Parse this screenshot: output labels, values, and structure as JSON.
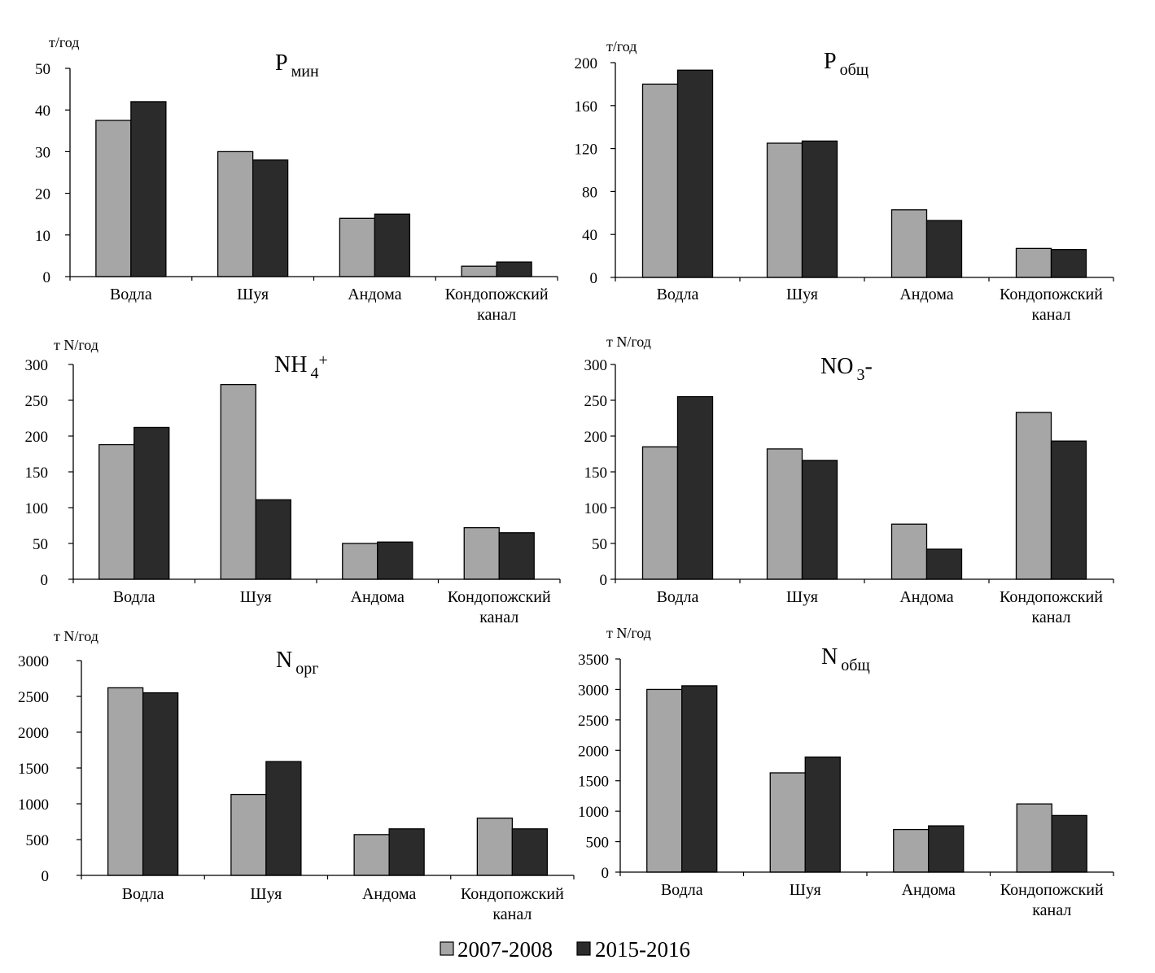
{
  "legend": [
    {
      "label": "2007-2008",
      "color": "#a6a6a6"
    },
    {
      "label": "2015-2016",
      "color": "#2b2b2b"
    }
  ],
  "chart_data": [
    {
      "type": "bar",
      "title_main": "P",
      "title_sub": "мин",
      "unit": "т/год",
      "categories": [
        [
          "Водла"
        ],
        [
          "Шуя"
        ],
        [
          "Андома"
        ],
        [
          "Кондопожский",
          "канал"
        ]
      ],
      "series": [
        {
          "name": "2007-2008",
          "values": [
            37.5,
            30,
            14,
            2.5
          ]
        },
        {
          "name": "2015-2016",
          "values": [
            42,
            28,
            15,
            3.5
          ]
        }
      ],
      "ylim": [
        0,
        50
      ],
      "yticks": [
        0,
        10,
        20,
        30,
        40,
        50
      ]
    },
    {
      "type": "bar",
      "title_main": "P",
      "title_sub": "общ",
      "unit": "т/год",
      "categories": [
        [
          "Водла"
        ],
        [
          "Шуя"
        ],
        [
          "Андома"
        ],
        [
          "Кондопожский",
          "канал"
        ]
      ],
      "series": [
        {
          "name": "2007-2008",
          "values": [
            180,
            125,
            63,
            27
          ]
        },
        {
          "name": "2015-2016",
          "values": [
            193,
            127,
            53,
            26
          ]
        }
      ],
      "ylim": [
        0,
        200
      ],
      "yticks": [
        0,
        40,
        80,
        120,
        160,
        200
      ]
    },
    {
      "type": "bar",
      "title_main": "NH",
      "title_sub": "4",
      "title_sup": "+",
      "unit": "т N/год",
      "categories": [
        [
          "Водла"
        ],
        [
          "Шуя"
        ],
        [
          "Андома"
        ],
        [
          "Кондопожский",
          "канал"
        ]
      ],
      "series": [
        {
          "name": "2007-2008",
          "values": [
            188,
            272,
            50,
            72
          ]
        },
        {
          "name": "2015-2016",
          "values": [
            212,
            111,
            52,
            65
          ]
        }
      ],
      "ylim": [
        0,
        300
      ],
      "yticks": [
        0,
        50,
        100,
        150,
        200,
        250,
        300
      ]
    },
    {
      "type": "bar",
      "title_main": "NO",
      "title_sub": "3",
      "title_tail": "-",
      "unit": "т N/год",
      "categories": [
        [
          "Водла"
        ],
        [
          "Шуя"
        ],
        [
          "Андома"
        ],
        [
          "Кондопожский",
          "канал"
        ]
      ],
      "series": [
        {
          "name": "2007-2008",
          "values": [
            185,
            182,
            77,
            233
          ]
        },
        {
          "name": "2015-2016",
          "values": [
            255,
            166,
            42,
            193
          ]
        }
      ],
      "ylim": [
        0,
        300
      ],
      "yticks": [
        0,
        50,
        100,
        150,
        200,
        250,
        300
      ]
    },
    {
      "type": "bar",
      "title_main": "N",
      "title_sub": "орг",
      "unit": "т N/год",
      "categories": [
        [
          "Водла"
        ],
        [
          "Шуя"
        ],
        [
          "Андома"
        ],
        [
          "Кондопожский",
          "канал"
        ]
      ],
      "series": [
        {
          "name": "2007-2008",
          "values": [
            2620,
            1130,
            570,
            800
          ]
        },
        {
          "name": "2015-2016",
          "values": [
            2550,
            1590,
            650,
            650
          ]
        }
      ],
      "ylim": [
        0,
        3000
      ],
      "yticks": [
        0,
        500,
        1000,
        1500,
        2000,
        2500,
        3000
      ]
    },
    {
      "type": "bar",
      "title_main": "N",
      "title_sub": "общ",
      "unit": "т N/год",
      "categories": [
        [
          "Водла"
        ],
        [
          "Шуя"
        ],
        [
          "Андома"
        ],
        [
          "Кондопожский",
          "канал"
        ]
      ],
      "series": [
        {
          "name": "2007-2008",
          "values": [
            3000,
            1630,
            700,
            1120
          ]
        },
        {
          "name": "2015-2016",
          "values": [
            3060,
            1890,
            760,
            930
          ]
        }
      ],
      "ylim": [
        0,
        3500
      ],
      "yticks": [
        0,
        500,
        1000,
        1500,
        2000,
        2500,
        3000,
        3500
      ]
    }
  ]
}
